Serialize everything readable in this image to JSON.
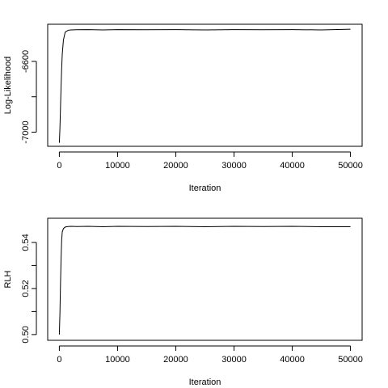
{
  "chart_data": [
    {
      "type": "line",
      "xlabel": "Iteration",
      "ylabel": "Log-Likelihood",
      "xticks": [
        0,
        10000,
        20000,
        30000,
        40000,
        50000
      ],
      "xtick_labels": [
        "0",
        "10000",
        "20000",
        "30000",
        "40000",
        "50000"
      ],
      "yticks": [
        -7000,
        -6800,
        -6600
      ],
      "ytick_labels": [
        "-7000",
        "",
        "-6600"
      ],
      "xlim": [
        -2000,
        52000
      ],
      "ylim": [
        -7080,
        -6390
      ],
      "series": [
        {
          "x": [
            0,
            100,
            200,
            300,
            400,
            500,
            700,
            1000,
            1500,
            2000,
            3000,
            5000,
            7500,
            10000,
            15000,
            20000,
            25000,
            30000,
            35000,
            40000,
            45000,
            50000
          ],
          "y": [
            -7060,
            -6980,
            -6860,
            -6740,
            -6640,
            -6560,
            -6480,
            -6435,
            -6424,
            -6422,
            -6421,
            -6420,
            -6422,
            -6420,
            -6421,
            -6420,
            -6422,
            -6420,
            -6421,
            -6420,
            -6422,
            -6418
          ]
        }
      ]
    },
    {
      "type": "line",
      "xlabel": "Iteration",
      "ylabel": "RLH",
      "xticks": [
        0,
        10000,
        20000,
        30000,
        40000,
        50000
      ],
      "xtick_labels": [
        "0",
        "10000",
        "20000",
        "30000",
        "40000",
        "50000"
      ],
      "yticks": [
        0.5,
        0.51,
        0.52,
        0.53,
        0.54
      ],
      "ytick_labels": [
        "0.50",
        "",
        "0.52",
        "",
        "0.54"
      ],
      "xlim": [
        -2000,
        52000
      ],
      "ylim": [
        0.4975,
        0.5505
      ],
      "series": [
        {
          "x": [
            0,
            100,
            200,
            300,
            400,
            500,
            700,
            1000,
            1500,
            2000,
            3000,
            5000,
            7500,
            10000,
            15000,
            20000,
            25000,
            30000,
            35000,
            40000,
            45000,
            50000
          ],
          "y": [
            0.5,
            0.509,
            0.522,
            0.533,
            0.541,
            0.5445,
            0.546,
            0.5467,
            0.5469,
            0.547,
            0.5469,
            0.547,
            0.5468,
            0.547,
            0.5469,
            0.547,
            0.5468,
            0.547,
            0.5469,
            0.547,
            0.5468,
            0.5468
          ]
        }
      ]
    }
  ]
}
